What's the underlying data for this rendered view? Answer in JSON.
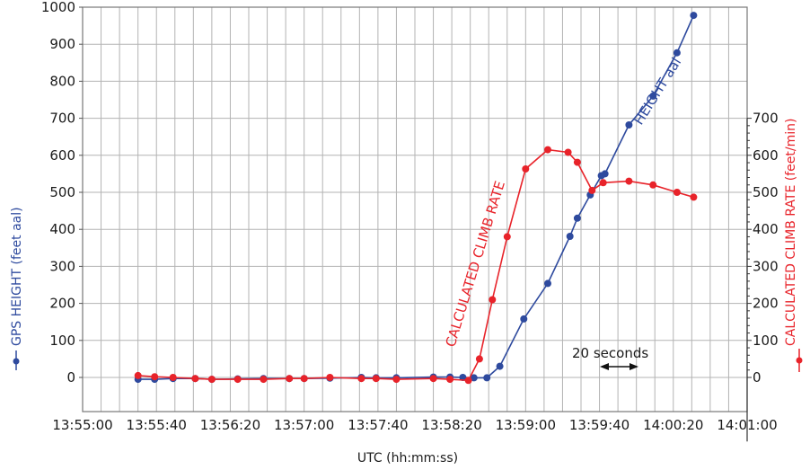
{
  "chart_data": {
    "type": "line",
    "xlabel": "UTC (hh:mm:ss)",
    "x_ticks": [
      "13:55:00",
      "13:55:40",
      "13:56:20",
      "13:57:00",
      "13:57:40",
      "13:58:20",
      "13:59:00",
      "13:59:40",
      "14:00:20",
      "14:01:00"
    ],
    "xlim": [
      "13:55:00",
      "14:01:00"
    ],
    "grid": true,
    "y_left": {
      "label": "GPS HEIGHT (feet aal)",
      "ticks": [
        "1000",
        "900",
        "800",
        "700",
        "600",
        "500",
        "400",
        "300",
        "200",
        "100",
        "0"
      ],
      "range": [
        -100,
        1000
      ]
    },
    "y_right": {
      "label": "CALCULATED CLIMB RATE (feet/min)",
      "ticks": [
        "700",
        "600",
        "500",
        "400",
        "300",
        "200",
        "100",
        "0"
      ],
      "range": [
        -100,
        700
      ]
    },
    "series": [
      {
        "name": "HEIGHT aal",
        "color": "#2e4a9e",
        "axis": "left",
        "points": [
          [
            "13:55:30",
            -5
          ],
          [
            "13:55:39",
            -5
          ],
          [
            "13:55:49",
            -3
          ],
          [
            "13:56:01",
            -3
          ],
          [
            "13:56:10",
            -5
          ],
          [
            "13:56:24",
            -4
          ],
          [
            "13:56:38",
            -3
          ],
          [
            "13:56:52",
            -3
          ],
          [
            "13:57:00",
            -3
          ],
          [
            "13:57:14",
            -2
          ],
          [
            "13:57:31",
            0
          ],
          [
            "13:57:39",
            -1
          ],
          [
            "13:57:50",
            -1
          ],
          [
            "13:58:10",
            1
          ],
          [
            "13:58:19",
            1
          ],
          [
            "13:58:26",
            0
          ],
          [
            "13:58:32",
            -1
          ],
          [
            "13:58:39",
            -1
          ],
          [
            "13:58:46",
            30
          ],
          [
            "13:58:59",
            158
          ],
          [
            "13:59:12",
            254
          ],
          [
            "13:59:24",
            381
          ],
          [
            "13:59:28",
            430
          ],
          [
            "13:59:35",
            493
          ],
          [
            "13:59:41",
            545
          ],
          [
            "13:59:43",
            550
          ],
          [
            "13:59:56",
            682
          ],
          [
            "14:00:09",
            760
          ],
          [
            "14:00:22",
            877
          ],
          [
            "14:00:31",
            978
          ]
        ]
      },
      {
        "name": "CALCULATED CLIMB RATE",
        "color": "#e8232a",
        "axis": "right",
        "points": [
          [
            "13:55:30",
            5
          ],
          [
            "13:55:39",
            2
          ],
          [
            "13:55:49",
            0
          ],
          [
            "13:56:01",
            -3
          ],
          [
            "13:56:10",
            -5
          ],
          [
            "13:56:24",
            -5
          ],
          [
            "13:56:38",
            -5
          ],
          [
            "13:56:52",
            -3
          ],
          [
            "13:57:00",
            -3
          ],
          [
            "13:57:14",
            0
          ],
          [
            "13:57:31",
            -3
          ],
          [
            "13:57:39",
            -3
          ],
          [
            "13:57:50",
            -5
          ],
          [
            "13:58:10",
            -3
          ],
          [
            "13:58:19",
            -5
          ],
          [
            "13:58:29",
            -8
          ],
          [
            "13:58:35",
            50
          ],
          [
            "13:58:42",
            210
          ],
          [
            "13:58:50",
            380
          ],
          [
            "13:59:00",
            563
          ],
          [
            "13:59:12",
            615
          ],
          [
            "13:59:23",
            608
          ],
          [
            "13:59:28",
            581
          ],
          [
            "13:59:36",
            505
          ],
          [
            "13:59:42",
            526
          ],
          [
            "13:59:56",
            530
          ],
          [
            "14:00:09",
            520
          ],
          [
            "14:00:22",
            500
          ],
          [
            "14:00:31",
            487
          ]
        ]
      }
    ],
    "annotations": [
      {
        "text": "HEIGHT aal",
        "color": "#2e4a9e"
      },
      {
        "text": "CALCULATED CLIMB RATE",
        "color": "#e8232a"
      },
      {
        "text": "20 seconds",
        "color": "#1a1a1a"
      }
    ]
  }
}
